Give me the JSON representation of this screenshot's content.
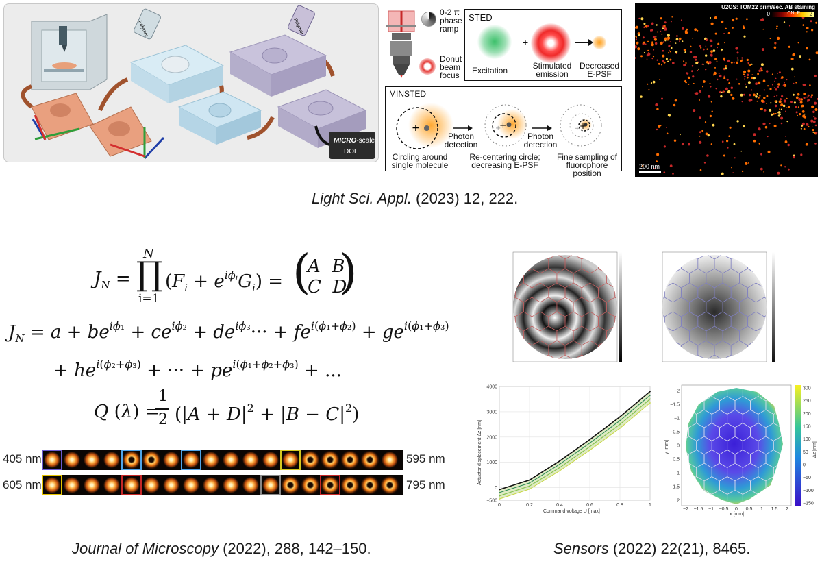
{
  "top": {
    "printing": {
      "bottle1_label": "Polymer",
      "bottle2_label": "Polymer",
      "doe_label_bold": "MICRO",
      "doe_label_rest": "-scale",
      "doe_label_2": "DOE"
    },
    "microscope": {
      "phase_label": "0-2 π phase ramp",
      "donut_label": "Donut beam focus"
    },
    "sted": {
      "title": "STED",
      "excitation": "Excitation",
      "stimulated": "Stimulated emission",
      "decreased": "Decreased E-PSF",
      "plus": "+"
    },
    "minsted": {
      "title": "MINSTED",
      "photon1": "Photon detection",
      "photon2": "Photon detection",
      "caption1": "Circling around single molecule",
      "caption2": "Re-centering circle; decreasing E-PSF",
      "caption3": "Fine sampling of fluorophore position"
    },
    "micrograph": {
      "title": "U2OS: TOM22 prim/sec. AB staining",
      "scale_min": "0",
      "scale_name": "CNLP",
      "scale_max": "2",
      "scalebar": "200 nm"
    },
    "citation_italic": "Light Sci. Appl.",
    "citation_rest": " (2023) 12, 222."
  },
  "equations": {
    "eq1_lhs": "J",
    "eq1_lhs_sub": "N",
    "eq1_prod_top": "N",
    "eq1_prod_bottom": "i=1",
    "eq1_body": "(F",
    "matrix": [
      "A",
      "B",
      "C",
      "D"
    ],
    "eq4_lhs": "Q (λ) =",
    "eq4_rhs": "(|A + D|² + |B − C|²)"
  },
  "psf": {
    "row1_left": "405 nm",
    "row1_right": "595 nm",
    "row2_left": "605 nm",
    "row2_right": "795 nm"
  },
  "bottom_left_citation_italic": "Journal of Microscopy",
  "bottom_left_citation_rest": " (2022), 288, 142–150.",
  "sensors": {
    "plot3": {
      "ylabel": "Actuator displacement Δz [nm]",
      "xlabel": "Command voltage U [max]",
      "yticks": [
        "4000",
        "3000",
        "2000",
        "1000",
        "0",
        "−500"
      ],
      "xticks": [
        "0",
        "0.2",
        "0.4",
        "0.6",
        "0.8",
        "1"
      ]
    },
    "plot4": {
      "ylabel": "y [mm]",
      "xlabel": "x [mm]",
      "cbar_label": "Δz [nm]",
      "cbar_ticks": [
        "300",
        "250",
        "200",
        "150",
        "100",
        "50",
        "0",
        "−50",
        "−100",
        "−150"
      ],
      "xticks": [
        "−2",
        "−1.5",
        "−1",
        "−0.5",
        "0",
        "0.5",
        "1",
        "1.5",
        "2"
      ],
      "yticks": [
        "−2",
        "−1.5",
        "−1",
        "−0.5",
        "0",
        "0.5",
        "1",
        "1.5",
        "2"
      ]
    },
    "citation_italic": "Sensors",
    "citation_rest": " (2022) 22(21), 8465."
  },
  "chart_data": {
    "type": "line",
    "xlabel": "Command voltage U [max]",
    "ylabel": "Actuator displacement Δz [nm]",
    "xlim": [
      0,
      1
    ],
    "ylim": [
      -500,
      4000
    ],
    "x": [
      0,
      0.2,
      0.4,
      0.6,
      0.8,
      1.0
    ],
    "series": [
      {
        "values": [
          -80,
          300,
          1050,
          1900,
          2800,
          3800
        ]
      },
      {
        "values": [
          -200,
          180,
          920,
          1760,
          2650,
          3650
        ]
      },
      {
        "values": [
          -330,
          60,
          790,
          1620,
          2500,
          3500
        ]
      },
      {
        "values": [
          -450,
          -60,
          660,
          1480,
          2350,
          3350
        ]
      }
    ],
    "colors": [
      "#111111",
      "#2e8b57",
      "#7fbf4a",
      "#c8d84a"
    ]
  }
}
